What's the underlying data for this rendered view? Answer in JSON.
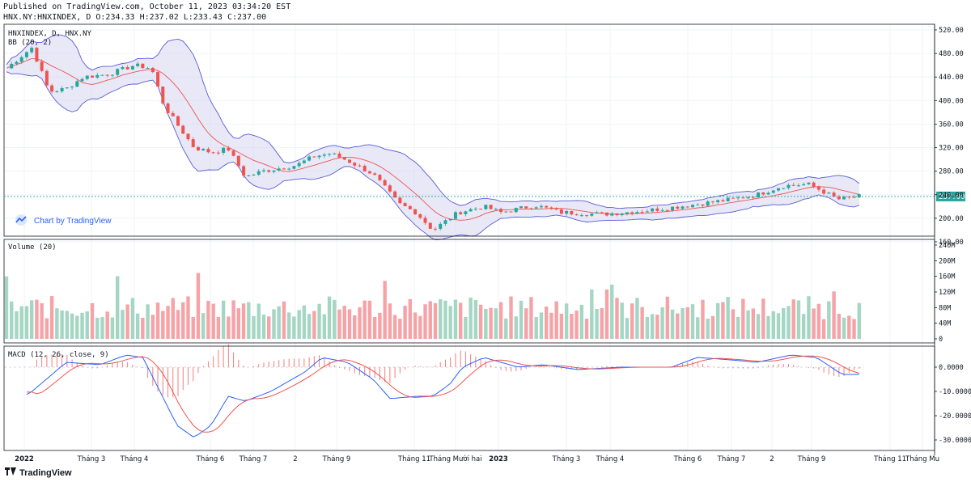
{
  "header": {
    "published": "Published on TradingView.com, October 11, 2023 03:34:20 EST",
    "ohlc": "HNX.NY:HNXINDEX, D O:234.33 H:237.02 L:233.43 C:237.00"
  },
  "legend": {
    "symbol": "HNXINDEX, D, HNX.NY",
    "bb": "BB (20, 2)",
    "volume": "Volume (20)",
    "macd": "MACD (12, 26, close, 9)"
  },
  "chart_by": "Chart by TradingView",
  "footer": {
    "brand": "TradingView"
  },
  "colors": {
    "up": "#26a69a",
    "down": "#ef5350",
    "vol_up": "#a5d6c4",
    "vol_down": "#f5a3a7",
    "band": "#5b5bd6",
    "band_fill": "#d6d6f0",
    "macd": "#2962ff",
    "signal": "#ef5350",
    "price_tag": "#26a69a"
  },
  "chart_data": {
    "type": "candlestick",
    "price_axis": {
      "min": 160,
      "max": 520,
      "ticks": [
        "520.00",
        "480.00",
        "440.00",
        "400.00",
        "360.00",
        "320.00",
        "280.00",
        "240.00",
        "200.00",
        "160.00"
      ],
      "current": "237.00"
    },
    "volume_axis": {
      "min": 0,
      "max": 240,
      "ticks": [
        "240M",
        "200M",
        "160M",
        "120M",
        "80M",
        "40M",
        "0"
      ]
    },
    "macd_axis": {
      "min": -30,
      "max": 5,
      "ticks": [
        "0.0000",
        "-10.0000",
        "-20.0000",
        "-30.0000"
      ]
    },
    "x_labels": [
      "2022",
      "Tháng 3",
      "Tháng 4",
      "Tháng 6",
      "Tháng 7",
      "2",
      "Tháng 9",
      "Tháng 11",
      "Tháng Mười hai",
      "2023",
      "Tháng 3",
      "Tháng 4",
      "Tháng 6",
      "Tháng 7",
      "2",
      "Tháng 9",
      "Tháng 11",
      "Tháng Mu"
    ],
    "price_path": [
      {
        "t": 0,
        "v": 455
      },
      {
        "t": 0.03,
        "v": 490
      },
      {
        "t": 0.05,
        "v": 415
      },
      {
        "t": 0.07,
        "v": 420
      },
      {
        "t": 0.09,
        "v": 440
      },
      {
        "t": 0.12,
        "v": 445
      },
      {
        "t": 0.15,
        "v": 460
      },
      {
        "t": 0.17,
        "v": 455
      },
      {
        "t": 0.185,
        "v": 390
      },
      {
        "t": 0.2,
        "v": 360
      },
      {
        "t": 0.22,
        "v": 320
      },
      {
        "t": 0.24,
        "v": 312
      },
      {
        "t": 0.26,
        "v": 318
      },
      {
        "t": 0.28,
        "v": 270
      },
      {
        "t": 0.3,
        "v": 280
      },
      {
        "t": 0.34,
        "v": 290
      },
      {
        "t": 0.36,
        "v": 305
      },
      {
        "t": 0.38,
        "v": 310
      },
      {
        "t": 0.4,
        "v": 298
      },
      {
        "t": 0.43,
        "v": 275
      },
      {
        "t": 0.46,
        "v": 225
      },
      {
        "t": 0.48,
        "v": 210
      },
      {
        "t": 0.5,
        "v": 180
      },
      {
        "t": 0.51,
        "v": 190
      },
      {
        "t": 0.53,
        "v": 210
      },
      {
        "t": 0.56,
        "v": 220
      },
      {
        "t": 0.58,
        "v": 210
      },
      {
        "t": 0.62,
        "v": 222
      },
      {
        "t": 0.65,
        "v": 210
      },
      {
        "t": 0.7,
        "v": 207
      },
      {
        "t": 0.75,
        "v": 213
      },
      {
        "t": 0.8,
        "v": 222
      },
      {
        "t": 0.85,
        "v": 232
      },
      {
        "t": 0.88,
        "v": 240
      },
      {
        "t": 0.91,
        "v": 255
      },
      {
        "t": 0.94,
        "v": 258
      },
      {
        "t": 0.96,
        "v": 244
      },
      {
        "t": 0.975,
        "v": 232
      },
      {
        "t": 1,
        "v": 237
      }
    ],
    "macd_path": [
      {
        "t": 0,
        "v": -4
      },
      {
        "t": 0.01,
        "v": -14
      },
      {
        "t": 0.03,
        "v": -10
      },
      {
        "t": 0.07,
        "v": 2
      },
      {
        "t": 0.11,
        "v": 1
      },
      {
        "t": 0.14,
        "v": 5
      },
      {
        "t": 0.16,
        "v": 4
      },
      {
        "t": 0.18,
        "v": -10
      },
      {
        "t": 0.2,
        "v": -24
      },
      {
        "t": 0.22,
        "v": -29
      },
      {
        "t": 0.24,
        "v": -24
      },
      {
        "t": 0.26,
        "v": -12
      },
      {
        "t": 0.28,
        "v": -14
      },
      {
        "t": 0.31,
        "v": -10
      },
      {
        "t": 0.35,
        "v": -2
      },
      {
        "t": 0.37,
        "v": 4
      },
      {
        "t": 0.4,
        "v": 2
      },
      {
        "t": 0.43,
        "v": -5
      },
      {
        "t": 0.45,
        "v": -13
      },
      {
        "t": 0.48,
        "v": -12
      },
      {
        "t": 0.5,
        "v": -12
      },
      {
        "t": 0.52,
        "v": -7
      },
      {
        "t": 0.535,
        "v": 0
      },
      {
        "t": 0.56,
        "v": 4
      },
      {
        "t": 0.6,
        "v": 0
      },
      {
        "t": 0.63,
        "v": 1
      },
      {
        "t": 0.67,
        "v": -1
      },
      {
        "t": 0.72,
        "v": 0
      },
      {
        "t": 0.78,
        "v": 0
      },
      {
        "t": 0.81,
        "v": 4
      },
      {
        "t": 0.85,
        "v": 3
      },
      {
        "t": 0.88,
        "v": 2
      },
      {
        "t": 0.92,
        "v": 5
      },
      {
        "t": 0.95,
        "v": 4
      },
      {
        "t": 0.98,
        "v": -3
      },
      {
        "t": 1,
        "v": -3
      }
    ]
  }
}
